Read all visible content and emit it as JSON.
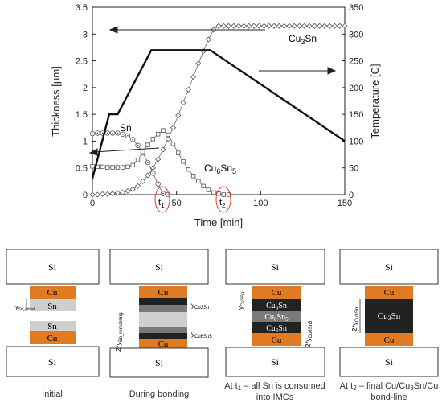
{
  "chart_data": {
    "type": "line",
    "x": {
      "label": "Time [min]",
      "range": [
        0,
        150
      ],
      "ticks": [
        0,
        50,
        100,
        150
      ]
    },
    "y_left": {
      "label": "Thickness [μm]",
      "range": [
        0,
        3.5
      ],
      "ticks": [
        0,
        0.5,
        1,
        1.5,
        2,
        2.5,
        3,
        3.5
      ]
    },
    "y_right": {
      "label": "Temperature [C]",
      "range": [
        0,
        350
      ],
      "ticks": [
        0,
        50,
        100,
        150,
        200,
        250,
        300,
        350
      ]
    },
    "grid": false,
    "series": [
      {
        "name": "Sn",
        "axis": "left",
        "marker": "circle-dot",
        "points": [
          [
            0,
            1.14
          ],
          [
            3,
            1.15
          ],
          [
            6,
            1.15
          ],
          [
            9,
            1.15
          ],
          [
            12,
            1.15
          ],
          [
            15,
            1.15
          ],
          [
            18,
            1.13
          ],
          [
            21,
            1.1
          ],
          [
            24,
            1.03
          ],
          [
            27,
            0.92
          ],
          [
            30,
            0.78
          ],
          [
            33,
            0.6
          ],
          [
            36,
            0.4
          ],
          [
            39,
            0.2
          ],
          [
            42,
            0.02
          ],
          [
            45,
            0
          ]
        ]
      },
      {
        "name": "Cu6Sn5",
        "axis": "left",
        "marker": "square",
        "points": [
          [
            0,
            0.53
          ],
          [
            3,
            0.52
          ],
          [
            6,
            0.52
          ],
          [
            9,
            0.51
          ],
          [
            12,
            0.51
          ],
          [
            15,
            0.51
          ],
          [
            18,
            0.51
          ],
          [
            21,
            0.52
          ],
          [
            24,
            0.55
          ],
          [
            27,
            0.65
          ],
          [
            30,
            0.8
          ],
          [
            33,
            0.93
          ],
          [
            36,
            1.04
          ],
          [
            39,
            1.13
          ],
          [
            42,
            1.2
          ],
          [
            45,
            1.12
          ],
          [
            48,
            0.95
          ],
          [
            51,
            0.78
          ],
          [
            54,
            0.62
          ],
          [
            57,
            0.47
          ],
          [
            60,
            0.35
          ],
          [
            63,
            0.25
          ],
          [
            66,
            0.16
          ],
          [
            69,
            0.09
          ],
          [
            72,
            0.04
          ],
          [
            75,
            0.02
          ],
          [
            78,
            0
          ],
          [
            81,
            0
          ]
        ]
      },
      {
        "name": "Cu3Sn",
        "axis": "left",
        "marker": "diamond",
        "points": [
          [
            0,
            0
          ],
          [
            3,
            0
          ],
          [
            6,
            0.01
          ],
          [
            9,
            0.01
          ],
          [
            12,
            0.02
          ],
          [
            15,
            0.03
          ],
          [
            18,
            0.04
          ],
          [
            21,
            0.07
          ],
          [
            24,
            0.1
          ],
          [
            27,
            0.16
          ],
          [
            30,
            0.25
          ],
          [
            33,
            0.36
          ],
          [
            36,
            0.5
          ],
          [
            39,
            0.66
          ],
          [
            42,
            0.84
          ],
          [
            45,
            1.04
          ],
          [
            48,
            1.25
          ],
          [
            51,
            1.48
          ],
          [
            54,
            1.72
          ],
          [
            57,
            1.96
          ],
          [
            60,
            2.2
          ],
          [
            63,
            2.45
          ],
          [
            66,
            2.68
          ],
          [
            69,
            2.9
          ],
          [
            72,
            3.08
          ],
          [
            75,
            3.15
          ],
          [
            78,
            3.15
          ],
          [
            81,
            3.15
          ],
          [
            84,
            3.15
          ],
          [
            87,
            3.15
          ],
          [
            90,
            3.15
          ],
          [
            93,
            3.15
          ],
          [
            96,
            3.15
          ],
          [
            99,
            3.15
          ],
          [
            102,
            3.15
          ],
          [
            105,
            3.15
          ],
          [
            108,
            3.15
          ],
          [
            111,
            3.15
          ],
          [
            114,
            3.15
          ],
          [
            117,
            3.15
          ],
          [
            120,
            3.15
          ],
          [
            123,
            3.15
          ],
          [
            126,
            3.15
          ],
          [
            129,
            3.15
          ],
          [
            132,
            3.15
          ],
          [
            135,
            3.15
          ],
          [
            138,
            3.15
          ],
          [
            141,
            3.15
          ],
          [
            144,
            3.15
          ],
          [
            147,
            3.15
          ],
          [
            150,
            3.15
          ]
        ]
      },
      {
        "name": "Temperature",
        "axis": "right",
        "marker": "none",
        "points": [
          [
            0,
            30
          ],
          [
            10,
            150
          ],
          [
            15,
            150
          ],
          [
            35,
            270
          ],
          [
            70,
            270
          ],
          [
            150,
            100
          ]
        ]
      }
    ],
    "annotations": [
      {
        "text": "t1",
        "x": 40,
        "y": 0
      },
      {
        "text": "t2",
        "x": 76,
        "y": 0
      }
    ]
  },
  "legend_labels": {
    "sn": "Sn",
    "cu6sn5": "Cu6Sn5",
    "cu3sn": "Cu3Sn"
  },
  "colors": {
    "copper": "#e07b22",
    "sn": "#c8c8c8",
    "imc": "#222222",
    "cu6sn5": "#7a7a7a",
    "si": "#ffffff"
  },
  "diagram": {
    "labels": {
      "si": "Si",
      "cu": "Cu",
      "sn": "Sn",
      "cu3sn": "Cu3Sn",
      "cu6sn5": "Cu6Sn5"
    },
    "panels": [
      {
        "caption": "Initial",
        "dims": [
          "y_Sn_initial"
        ]
      },
      {
        "caption": "During bonding",
        "dims": [
          "2*y_Sn_remaining",
          "y_Cu3Sn",
          "y_Cu6Sn5"
        ]
      },
      {
        "caption": "At t1 – all Sn is consumed into IMCs",
        "dims": [
          "y_Cu3Sn",
          "2*y_Cu6Sn5"
        ]
      },
      {
        "caption": "At t2 – final Cu/Cu3Sn/Cu bond-line",
        "dims": [
          "2*y_Cu3Sn"
        ]
      }
    ]
  }
}
